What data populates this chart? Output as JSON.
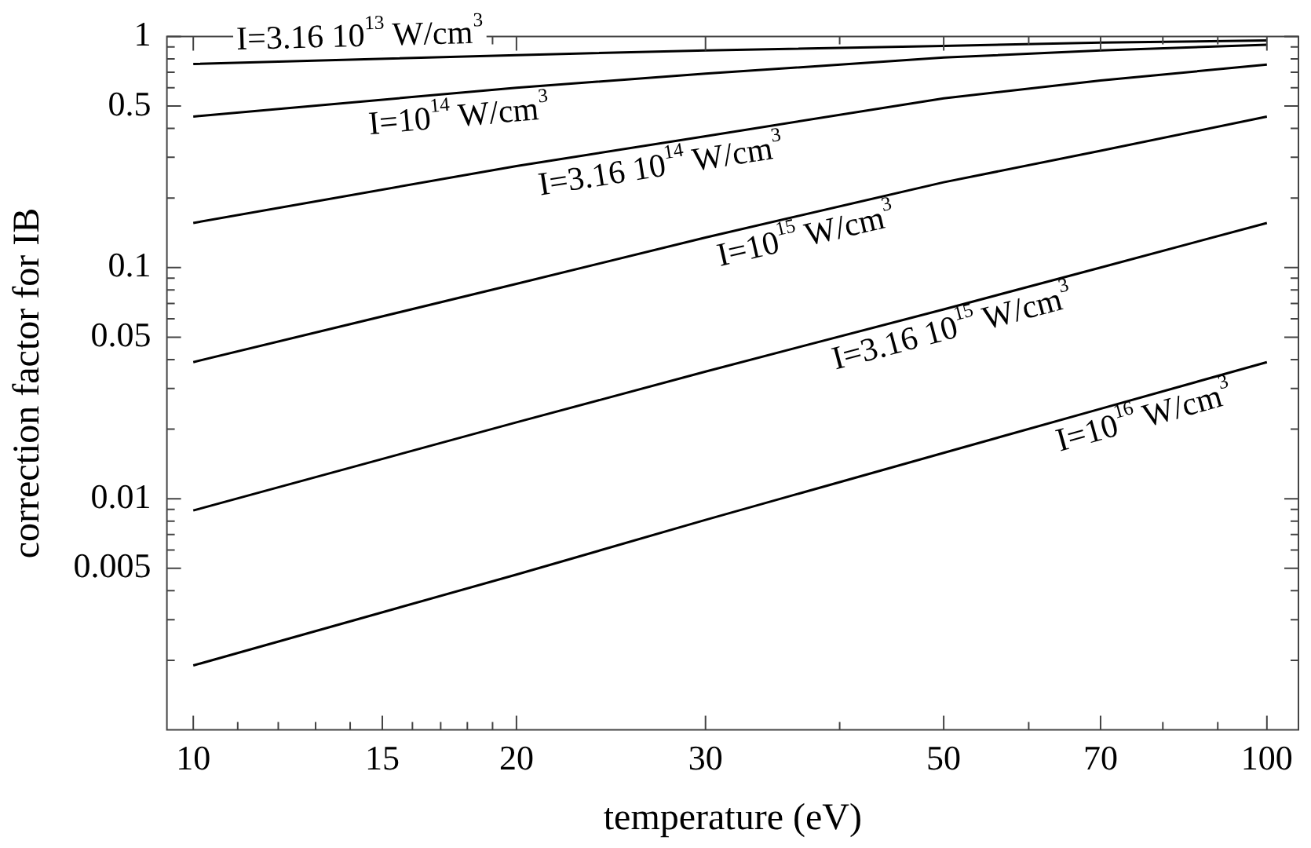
{
  "chart_data": {
    "type": "line",
    "xlabel": "temperature (eV)",
    "ylabel": "correction factor for IB",
    "log": "xy",
    "marker": "none",
    "line_style": "solid",
    "xlim": [
      9.45,
      107
    ],
    "ylim": [
      0.001,
      1
    ],
    "xticks": [
      10,
      {
        "value": 11,
        "label": null
      },
      {
        "value": 12,
        "label": null
      },
      {
        "value": 13,
        "label": null
      },
      {
        "value": 14,
        "label": null
      },
      15,
      {
        "value": 16,
        "label": null
      },
      {
        "value": 17,
        "label": null
      },
      {
        "value": 18,
        "label": null
      },
      {
        "value": 19,
        "label": null
      },
      20,
      30,
      {
        "value": 40,
        "label": null
      },
      50,
      {
        "value": 60,
        "label": null
      },
      70,
      {
        "value": 80,
        "label": null
      },
      {
        "value": 90,
        "label": null
      },
      100
    ],
    "yticks": [
      {
        "value": 0.002,
        "label": null
      },
      {
        "value": 0.003,
        "label": null
      },
      {
        "value": 0.004,
        "label": null
      },
      0.005,
      {
        "value": 0.006,
        "label": null
      },
      {
        "value": 0.007,
        "label": null
      },
      {
        "value": 0.008,
        "label": null
      },
      {
        "value": 0.009,
        "label": null
      },
      0.01,
      {
        "value": 0.02,
        "label": null
      },
      {
        "value": 0.03,
        "label": null
      },
      {
        "value": 0.04,
        "label": null
      },
      0.05,
      {
        "value": 0.06,
        "label": null
      },
      {
        "value": 0.07,
        "label": null
      },
      {
        "value": 0.08,
        "label": null
      },
      {
        "value": 0.09,
        "label": null
      },
      0.1,
      {
        "value": 0.2,
        "label": null
      },
      {
        "value": 0.3,
        "label": null
      },
      {
        "value": 0.4,
        "label": null
      },
      0.5,
      {
        "value": 0.6,
        "label": null
      },
      {
        "value": 0.7,
        "label": null
      },
      {
        "value": 0.8,
        "label": null
      },
      {
        "value": 0.9,
        "label": null
      },
      1
    ],
    "x": [
      10,
      20,
      30,
      50,
      70,
      100
    ],
    "series": [
      {
        "name": "I=3.16 10$^{13}$ W/cm$^{3}$",
        "color": "#000000",
        "values": [
          0.76,
          0.83,
          0.87,
          0.91,
          0.94,
          0.96
        ]
      },
      {
        "name": "I=10$^{14}$ W/cm$^{3}$",
        "color": "#000000",
        "values": [
          0.45,
          0.6,
          0.69,
          0.81,
          0.87,
          0.92
        ]
      },
      {
        "name": "I=3.16 10$^{14}$ W/cm$^{3}$",
        "color": "#000000",
        "values": [
          0.156,
          0.275,
          0.37,
          0.54,
          0.645,
          0.755
        ]
      },
      {
        "name": "I=10$^{15}$ W/cm$^{3}$",
        "color": "#000000",
        "values": [
          0.039,
          0.085,
          0.135,
          0.234,
          0.32,
          0.45
        ]
      },
      {
        "name": "I=3.16 10$^{15}$ W/cm$^{3}$",
        "color": "#000000",
        "values": [
          0.0089,
          0.0214,
          0.0355,
          0.066,
          0.1,
          0.156
        ]
      },
      {
        "name": "I=10$^{16}$ W/cm$^{3}$",
        "color": "#000000",
        "values": [
          0.0019,
          0.0047,
          0.0081,
          0.0158,
          0.0245,
          0.039
        ]
      }
    ]
  }
}
